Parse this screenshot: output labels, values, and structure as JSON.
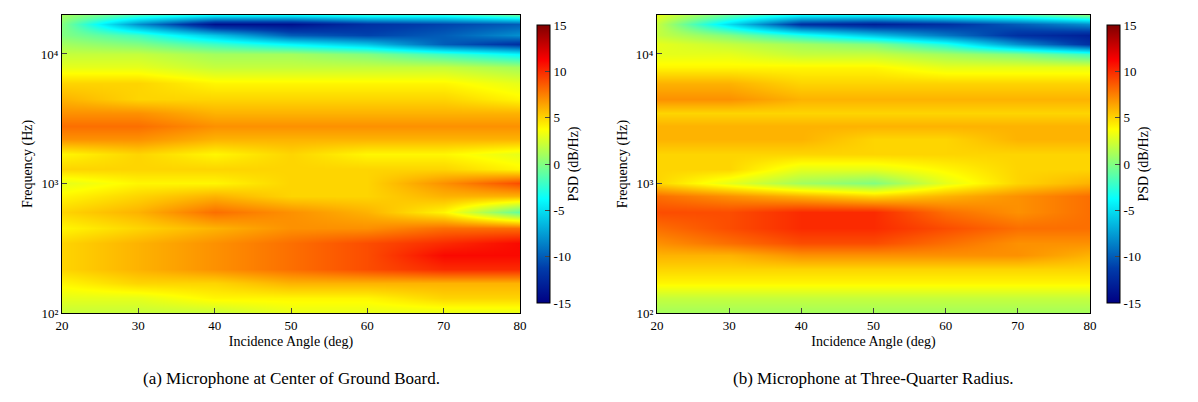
{
  "chart_data": [
    {
      "type": "heatmap",
      "title": "(a) Microphone at Center of Ground Board.",
      "xlabel": "Incidence Angle (deg)",
      "ylabel": "Frequency (Hz)",
      "log": "y",
      "x": [
        20,
        30,
        40,
        50,
        60,
        70,
        80
      ],
      "y": [
        100,
        130,
        170,
        220,
        280,
        350,
        450,
        600,
        800,
        1000,
        1300,
        1700,
        2200,
        2800,
        3500,
        4500,
        6000,
        8000,
        10000,
        12000,
        14000,
        17000,
        20000
      ],
      "cells": [
        [
          2,
          2,
          2,
          3,
          3,
          3,
          3
        ],
        [
          3,
          3,
          4,
          4,
          4,
          5,
          5
        ],
        [
          4,
          5,
          5,
          6,
          6,
          6,
          6
        ],
        [
          5,
          6,
          7,
          8,
          9,
          10,
          10
        ],
        [
          5,
          6,
          7,
          8,
          9,
          11,
          11
        ],
        [
          5,
          6,
          7,
          8,
          9,
          10,
          11
        ],
        [
          4,
          5,
          6,
          7,
          7,
          8,
          8
        ],
        [
          5,
          6,
          8,
          7,
          6,
          4,
          -1
        ],
        [
          4,
          5,
          6,
          5,
          5,
          6,
          6
        ],
        [
          3,
          4,
          4,
          5,
          5,
          7,
          9
        ],
        [
          5,
          5,
          5,
          5,
          5,
          5,
          4
        ],
        [
          4,
          5,
          4,
          5,
          4,
          4,
          3
        ],
        [
          7,
          7,
          6,
          6,
          6,
          6,
          6
        ],
        [
          8,
          8,
          7,
          7,
          7,
          7,
          7
        ],
        [
          7,
          7,
          6,
          6,
          6,
          6,
          6
        ],
        [
          6,
          5,
          5,
          5,
          5,
          5,
          4
        ],
        [
          5,
          5,
          4,
          4,
          4,
          4,
          3
        ],
        [
          3,
          3,
          2,
          2,
          2,
          2,
          1
        ],
        [
          2,
          2,
          1,
          1,
          0,
          -2,
          -4
        ],
        [
          1,
          0,
          -2,
          -4,
          -6,
          -10,
          -12
        ],
        [
          0,
          -2,
          -6,
          -10,
          -11,
          -10,
          -8
        ],
        [
          0,
          -8,
          -14,
          -14,
          -12,
          -11,
          -10
        ],
        [
          1,
          -2,
          -4,
          -4,
          -3,
          -3,
          -1
        ]
      ],
      "xlim": [
        20,
        80
      ],
      "xticks": [
        20,
        30,
        40,
        50,
        60,
        70,
        80
      ],
      "ylim": [
        100,
        20000
      ],
      "yticks": [
        {
          "value": 100,
          "label": "10²"
        },
        {
          "value": 1000,
          "label": "10³"
        },
        {
          "value": 10000,
          "label": "10⁴"
        }
      ],
      "zlabel": "PSD (dB/Hz)",
      "zlim": [
        -15,
        15
      ],
      "zticks": [
        -15,
        -10,
        -5,
        0,
        5,
        10,
        15
      ]
    },
    {
      "type": "heatmap",
      "title": "(b) Microphone at Three-Quarter Radius.",
      "xlabel": "Incidence Angle (deg)",
      "ylabel": "Frequency (Hz)",
      "log": "y",
      "x": [
        20,
        30,
        40,
        50,
        60,
        70,
        80
      ],
      "y": [
        100,
        130,
        170,
        220,
        280,
        350,
        450,
        600,
        800,
        1000,
        1300,
        1700,
        2200,
        2800,
        3500,
        4500,
        6000,
        8000,
        10000,
        12000,
        14000,
        17000,
        20000
      ],
      "cells": [
        [
          1,
          1,
          1,
          1,
          1,
          1,
          1
        ],
        [
          2,
          2,
          2,
          2,
          2,
          2,
          2
        ],
        [
          4,
          4,
          4,
          4,
          4,
          4,
          4
        ],
        [
          5,
          5,
          5,
          5,
          5,
          5,
          5
        ],
        [
          6,
          6,
          7,
          7,
          7,
          7,
          6
        ],
        [
          7,
          8,
          9,
          9,
          8,
          7,
          7
        ],
        [
          8,
          9,
          10,
          10,
          9,
          8,
          8
        ],
        [
          9,
          9,
          10,
          10,
          8,
          7,
          8
        ],
        [
          8,
          7,
          6,
          5,
          6,
          7,
          8
        ],
        [
          5,
          3,
          1,
          0,
          3,
          5,
          6
        ],
        [
          5,
          5,
          3,
          3,
          4,
          5,
          5
        ],
        [
          5,
          5,
          5,
          5,
          5,
          5,
          5
        ],
        [
          6,
          6,
          6,
          5,
          5,
          6,
          6
        ],
        [
          6,
          6,
          6,
          6,
          6,
          6,
          6
        ],
        [
          5,
          5,
          5,
          5,
          5,
          5,
          5
        ],
        [
          7,
          7,
          6,
          6,
          6,
          6,
          6
        ],
        [
          6,
          6,
          5,
          5,
          5,
          5,
          5
        ],
        [
          4,
          4,
          4,
          4,
          3,
          3,
          3
        ],
        [
          3,
          3,
          2,
          2,
          1,
          0,
          -2
        ],
        [
          3,
          2,
          1,
          0,
          -3,
          -8,
          -12
        ],
        [
          2,
          0,
          -3,
          -6,
          -9,
          -12,
          -13
        ],
        [
          2,
          -5,
          -12,
          -13,
          -12,
          -10,
          -8
        ],
        [
          3,
          -1,
          -4,
          -4,
          -3,
          -2,
          0
        ]
      ],
      "xlim": [
        20,
        80
      ],
      "xticks": [
        20,
        30,
        40,
        50,
        60,
        70,
        80
      ],
      "ylim": [
        100,
        20000
      ],
      "yticks": [
        {
          "value": 100,
          "label": "10²"
        },
        {
          "value": 1000,
          "label": "10³"
        },
        {
          "value": 10000,
          "label": "10⁴"
        }
      ],
      "zlabel": "PSD (dB/Hz)",
      "zlim": [
        -15,
        15
      ],
      "zticks": [
        -15,
        -10,
        -5,
        0,
        5,
        10,
        15
      ]
    }
  ]
}
